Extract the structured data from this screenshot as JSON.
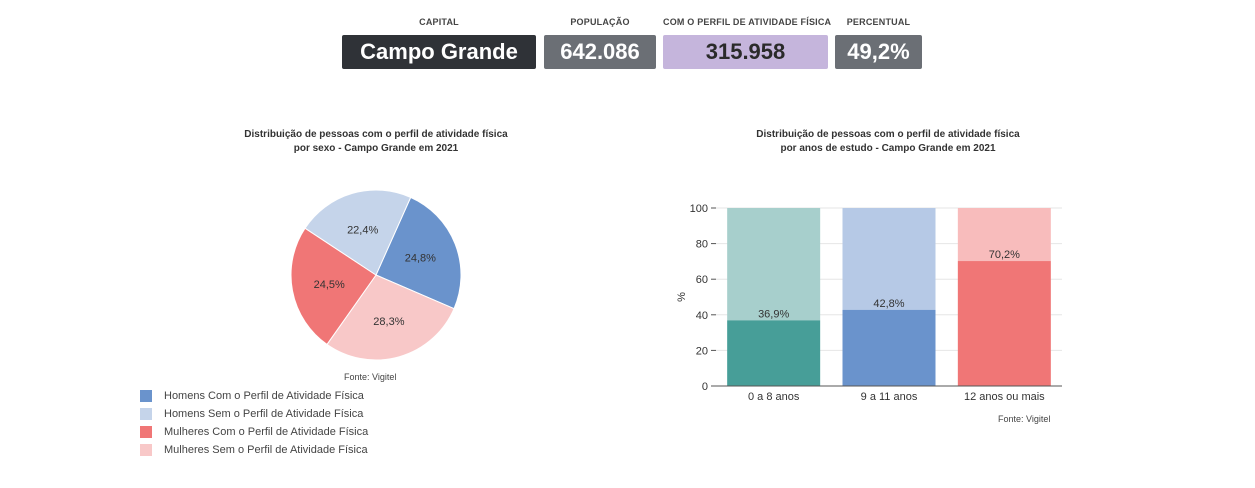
{
  "header": {
    "capital": {
      "label": "CAPITAL",
      "value": "Campo Grande",
      "bg": "#2f3237",
      "fg": "#ffffff"
    },
    "populacao": {
      "label": "POPULAÇÃO",
      "value": "642.086",
      "bg": "#6b6f75",
      "fg": "#ffffff"
    },
    "perfil": {
      "label": "COM O PERFIL DE ATIVIDADE FÍSICA",
      "value": "315.958",
      "bg": "#c5b5dc",
      "fg": "#2a2a2a"
    },
    "percentual": {
      "label": "PERCENTUAL",
      "value": "49,2%",
      "bg": "#6b6f75",
      "fg": "#ffffff"
    }
  },
  "pie_title": {
    "line1": "Distribuição de pessoas com o perfil de atividade física",
    "line2": "por sexo - Campo Grande em 2021"
  },
  "bar_title": {
    "line1": "Distribuição de pessoas com o perfil de atividade física",
    "line2": "por anos de estudo - Campo Grande em 2021"
  },
  "pie_source": "Fonte: Vigitel",
  "bar_source": "Fonte: Vigitel",
  "chart_data": [
    {
      "type": "pie",
      "title": "Distribuição de pessoas com o perfil de atividade física por sexo - Campo Grande em 2021",
      "slices": [
        {
          "name": "Homens Com o Perfil de Atividade Física",
          "value": 24.8,
          "label": "24,8%",
          "color": "#6a93cc"
        },
        {
          "name": "Mulheres Sem o Perfil de Atividade Física",
          "value": 28.3,
          "label": "28,3%",
          "color": "#f8c8c8"
        },
        {
          "name": "Mulheres Com o Perfil de Atividade Física",
          "value": 24.5,
          "label": "24,5%",
          "color": "#f07676"
        },
        {
          "name": "Homens Sem o Perfil de Atividade Física",
          "value": 22.4,
          "label": "22,4%",
          "color": "#c5d4ea"
        }
      ],
      "legend": [
        {
          "name": "Homens Com o Perfil de Atividade Física",
          "color": "#6a93cc"
        },
        {
          "name": "Homens Sem o Perfil de Atividade Física",
          "color": "#c5d4ea"
        },
        {
          "name": "Mulheres Com o Perfil de Atividade Física",
          "color": "#f07676"
        },
        {
          "name": "Mulheres Sem o Perfil de Atividade Física",
          "color": "#f8c8c8"
        }
      ],
      "legend_position": "bottom-left"
    },
    {
      "type": "bar",
      "stacked": true,
      "title": "Distribuição de pessoas com o perfil de atividade física por anos de estudo - Campo Grande em 2021",
      "categories": [
        "0 a 8 anos",
        "9 a 11 anos",
        "12 anos ou mais"
      ],
      "values": [
        36.9,
        42.8,
        70.2
      ],
      "value_labels": [
        "36,9%",
        "42,8%",
        "70,2%"
      ],
      "totals": [
        100,
        100,
        100
      ],
      "colors": [
        "#479e98",
        "#6a93cc",
        "#f07676"
      ],
      "light_colors": [
        "#a7cfcc",
        "#b6c9e6",
        "#f8bcbc"
      ],
      "ylabel": "%",
      "ylim": [
        0,
        100
      ],
      "yticks": [
        0,
        20,
        40,
        60,
        80,
        100
      ],
      "grid": true
    }
  ]
}
